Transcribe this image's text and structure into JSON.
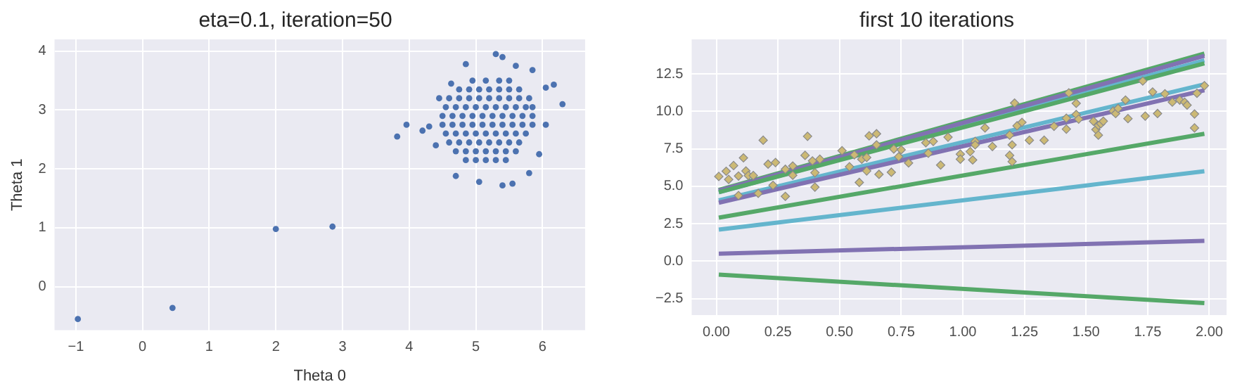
{
  "chart_data": [
    {
      "type": "scatter",
      "title": "eta=0.1, iteration=50",
      "xlabel": "Theta 0",
      "ylabel": "Theta 1",
      "color": "#4c72b0",
      "marker": "circle",
      "grid": true,
      "legend": false,
      "xlim": [
        -1.32,
        6.64
      ],
      "ylim": [
        -0.74,
        4.2
      ],
      "xticks": [
        {
          "value": -1,
          "label": "−1"
        },
        0,
        1,
        2,
        3,
        4,
        5,
        6
      ],
      "yticks": [
        0,
        1,
        2,
        3,
        4
      ],
      "x": [
        -0.97,
        0.45,
        2.0,
        2.85,
        3.82,
        3.96,
        4.95,
        5.15,
        5.35,
        5.5,
        4.75,
        4.9,
        5.05,
        5.2,
        5.35,
        5.5,
        5.65,
        4.6,
        4.75,
        4.9,
        5.05,
        5.2,
        5.35,
        5.5,
        5.65,
        5.8,
        4.55,
        4.7,
        4.85,
        5.0,
        5.15,
        5.3,
        5.45,
        5.6,
        5.75,
        5.85,
        4.5,
        4.65,
        4.8,
        4.95,
        5.1,
        5.25,
        5.4,
        5.55,
        5.7,
        5.85,
        4.5,
        4.65,
        4.8,
        4.95,
        5.1,
        5.25,
        5.4,
        5.55,
        5.7,
        5.85,
        4.55,
        4.7,
        4.85,
        5.0,
        5.15,
        5.3,
        5.45,
        5.6,
        5.75,
        4.6,
        4.75,
        4.9,
        5.05,
        5.2,
        5.35,
        5.5,
        5.65,
        4.7,
        4.85,
        5.0,
        5.15,
        5.3,
        5.45,
        5.6,
        4.85,
        5.0,
        5.15,
        5.3,
        5.45,
        5.3,
        5.4,
        4.85,
        5.6,
        5.85,
        6.3,
        6.17,
        6.05,
        4.2,
        4.3,
        4.4,
        4.7,
        5.05,
        5.4,
        5.55,
        5.8,
        5.95,
        6.05,
        4.45,
        4.63
      ],
      "values": [
        -0.55,
        -0.36,
        0.98,
        1.02,
        2.55,
        2.75,
        3.5,
        3.5,
        3.5,
        3.5,
        3.35,
        3.35,
        3.35,
        3.35,
        3.35,
        3.35,
        3.35,
        3.2,
        3.2,
        3.2,
        3.2,
        3.2,
        3.2,
        3.2,
        3.2,
        3.2,
        3.05,
        3.05,
        3.05,
        3.05,
        3.05,
        3.05,
        3.05,
        3.05,
        3.05,
        3.05,
        2.9,
        2.9,
        2.9,
        2.9,
        2.9,
        2.9,
        2.9,
        2.9,
        2.9,
        2.9,
        2.75,
        2.75,
        2.75,
        2.75,
        2.75,
        2.75,
        2.75,
        2.75,
        2.75,
        2.75,
        2.6,
        2.6,
        2.6,
        2.6,
        2.6,
        2.6,
        2.6,
        2.6,
        2.6,
        2.45,
        2.45,
        2.45,
        2.45,
        2.45,
        2.45,
        2.45,
        2.45,
        2.3,
        2.3,
        2.3,
        2.3,
        2.3,
        2.3,
        2.3,
        2.15,
        2.15,
        2.15,
        2.15,
        2.15,
        3.95,
        3.9,
        3.78,
        3.75,
        3.68,
        3.1,
        3.43,
        3.38,
        2.65,
        2.72,
        2.4,
        1.88,
        1.78,
        1.72,
        1.75,
        1.93,
        2.25,
        2.75,
        3.2,
        3.45
      ]
    },
    {
      "type": "scatter",
      "title": "first 10 iterations",
      "grid": true,
      "legend": false,
      "xlim": [
        -0.1,
        2.07
      ],
      "ylim": [
        -3.6,
        14.8
      ],
      "xticks": [
        {
          "value": 0,
          "label": "0.00"
        },
        {
          "value": 0.25,
          "label": "0.25"
        },
        {
          "value": 0.5,
          "label": "0.50"
        },
        {
          "value": 0.75,
          "label": "0.75"
        },
        {
          "value": 1,
          "label": "1.00"
        },
        {
          "value": 1.25,
          "label": "1.25"
        },
        {
          "value": 1.5,
          "label": "1.50"
        },
        {
          "value": 1.75,
          "label": "1.75"
        },
        {
          "value": 2,
          "label": "2.00"
        }
      ],
      "yticks": [
        {
          "value": -2.5,
          "label": "−2.5"
        },
        {
          "value": 0,
          "label": "0.0"
        },
        {
          "value": 2.5,
          "label": "2.5"
        },
        {
          "value": 5,
          "label": "5.0"
        },
        {
          "value": 7.5,
          "label": "7.5"
        },
        {
          "value": 10,
          "label": "10.0"
        },
        {
          "value": 12.5,
          "label": "12.5"
        }
      ],
      "series": [
        {
          "type": "scatter",
          "color": "#ccb974",
          "marker": "diamond",
          "x": [
            0.01,
            0.04,
            0.05,
            0.07,
            0.09,
            0.09,
            0.11,
            0.12,
            0.13,
            0.15,
            0.17,
            0.19,
            0.21,
            0.23,
            0.24,
            0.28,
            0.28,
            0.31,
            0.31,
            0.36,
            0.37,
            0.39,
            0.4,
            0.4,
            0.42,
            0.51,
            0.54,
            0.56,
            0.58,
            0.59,
            0.61,
            0.61,
            0.62,
            0.65,
            0.65,
            0.66,
            0.71,
            0.72,
            0.74,
            0.75,
            0.78,
            0.85,
            0.86,
            0.88,
            0.91,
            0.94,
            0.99,
            0.99,
            1.03,
            1.04,
            1.05,
            1.05,
            1.09,
            1.12,
            1.19,
            1.19,
            1.2,
            1.2,
            1.21,
            1.22,
            1.24,
            1.27,
            1.33,
            1.37,
            1.42,
            1.42,
            1.43,
            1.46,
            1.46,
            1.47,
            1.53,
            1.54,
            1.55,
            1.55,
            1.56,
            1.57,
            1.61,
            1.62,
            1.63,
            1.66,
            1.67,
            1.73,
            1.74,
            1.77,
            1.79,
            1.82,
            1.85,
            1.88,
            1.9,
            1.91,
            1.94,
            1.94,
            1.95,
            1.98
          ],
          "values": [
            5.65,
            6.0,
            5.45,
            6.38,
            5.68,
            4.38,
            6.89,
            6.02,
            5.71,
            5.71,
            4.52,
            8.07,
            6.47,
            5.06,
            6.58,
            4.32,
            6.13,
            5.73,
            6.35,
            7.06,
            8.33,
            6.69,
            4.94,
            5.9,
            6.8,
            7.37,
            6.3,
            7.09,
            5.25,
            6.8,
            6.92,
            6.02,
            8.36,
            8.5,
            7.76,
            5.79,
            5.93,
            7.48,
            6.97,
            7.43,
            6.55,
            7.9,
            7.2,
            7.99,
            6.41,
            8.27,
            7.14,
            6.8,
            7.31,
            6.75,
            7.99,
            7.76,
            8.89,
            7.65,
            8.41,
            7.06,
            6.64,
            7.76,
            10.55,
            9.03,
            9.26,
            8.07,
            8.07,
            9.0,
            8.81,
            9.54,
            11.23,
            10.53,
            9.79,
            9.48,
            9.34,
            8.78,
            8.41,
            9.06,
            9.17,
            9.34,
            10.02,
            9.85,
            10.19,
            10.75,
            9.51,
            12.02,
            9.68,
            11.29,
            9.85,
            11.17,
            10.61,
            10.75,
            10.61,
            10.41,
            8.89,
            9.82,
            11.2,
            11.71
          ]
        },
        {
          "type": "line",
          "color": "#55a868",
          "x": [
            0.01,
            1.98
          ],
          "values": [
            -0.9,
            -2.8
          ]
        },
        {
          "type": "line",
          "color": "#8172b2",
          "x": [
            0.01,
            1.98
          ],
          "values": [
            0.5,
            1.35
          ]
        },
        {
          "type": "line",
          "color": "#64b5cd",
          "x": [
            0.01,
            1.98
          ],
          "values": [
            2.1,
            6.0
          ]
        },
        {
          "type": "line",
          "color": "#55a868",
          "x": [
            0.01,
            1.98
          ],
          "values": [
            2.9,
            8.5
          ]
        },
        {
          "type": "line",
          "color": "#8172b2",
          "x": [
            0.01,
            1.98
          ],
          "values": [
            3.9,
            11.4
          ]
        },
        {
          "type": "line",
          "color": "#64b5cd",
          "x": [
            0.01,
            1.98
          ],
          "values": [
            4.05,
            11.8
          ]
        },
        {
          "type": "line",
          "color": "#55a868",
          "x": [
            0.01,
            1.98
          ],
          "values": [
            4.6,
            13.2
          ]
        },
        {
          "type": "line",
          "color": "#8172b2",
          "x": [
            0.01,
            1.98
          ],
          "values": [
            4.7,
            13.7
          ]
        },
        {
          "type": "line",
          "color": "#64b5cd",
          "x": [
            0.01,
            1.98
          ],
          "values": [
            4.6,
            13.4
          ]
        },
        {
          "type": "line",
          "color": "#55a868",
          "x": [
            0.01,
            1.98
          ],
          "values": [
            4.75,
            13.85
          ]
        }
      ]
    }
  ]
}
